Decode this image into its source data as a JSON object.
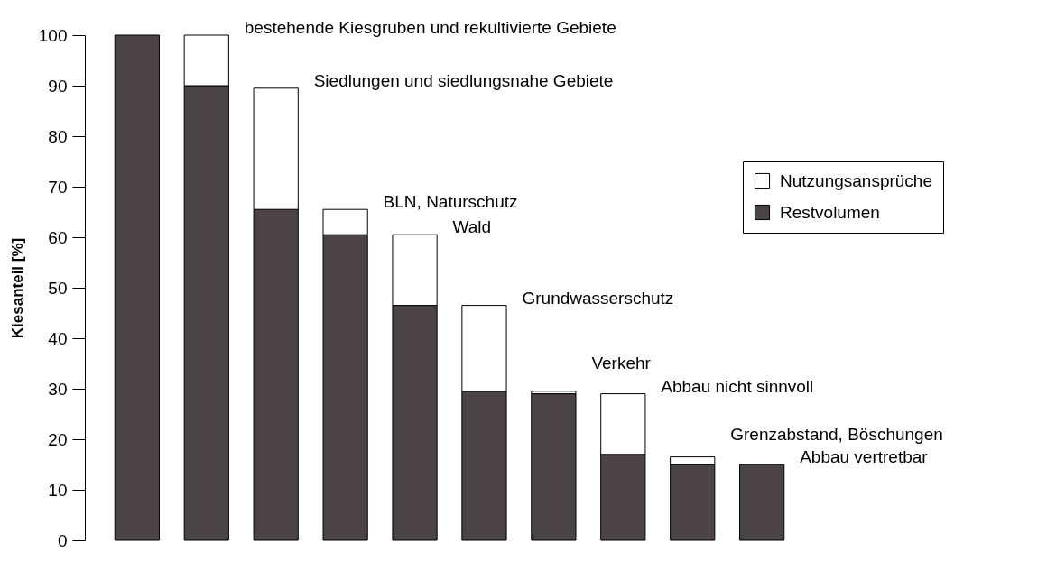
{
  "chart_data": {
    "type": "bar",
    "stacked": true,
    "ylabel": "Kiesanteil [%]",
    "categories": [
      null,
      null,
      null,
      null,
      null,
      null,
      null,
      null,
      null,
      null
    ],
    "series": [
      {
        "name": "Restvolumen",
        "color": "#4a4446",
        "values": [
          100,
          90,
          65.5,
          60.5,
          46.5,
          29.5,
          29,
          17,
          15,
          15
        ]
      },
      {
        "name": "Nutzungsansprüche",
        "color": "#ffffff",
        "values": [
          0,
          10,
          24,
          5,
          14,
          17,
          0.5,
          12,
          1.5,
          0
        ]
      }
    ],
    "annotations": [
      "bestehende Kiesgruben und rekultivierte Gebiete",
      "Siedlungen und siedlungsnahe Gebiete",
      "BLN, Naturschutz",
      "Wald",
      "Grundwasserschutz",
      "Verkehr",
      "Abbau nicht sinnvoll",
      "Grenzabstand, Böschungen",
      "Abbau vertretbar"
    ],
    "ylim": [
      0,
      100
    ],
    "yticks": [
      0,
      10,
      20,
      30,
      40,
      50,
      60,
      70,
      80,
      90,
      100
    ],
    "tick_labels": "y",
    "grid": false,
    "legend": "right"
  }
}
